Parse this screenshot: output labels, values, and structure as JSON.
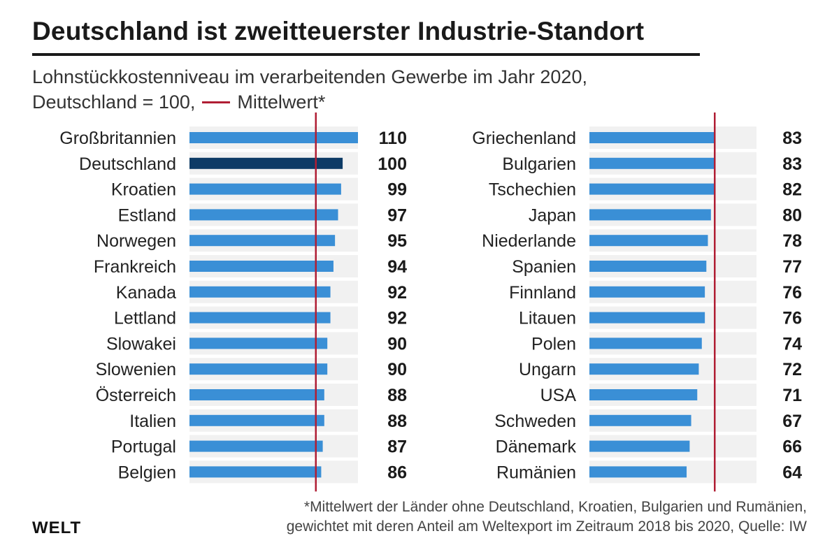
{
  "header": {
    "title": "Deutschland ist zweitteuerster Industrie-Standort",
    "subtitle_line1": "Lohnstückkostenniveau im verarbeitenden Gewerbe im Jahr 2020,",
    "subtitle_line2_prefix": "Deutschland = 100,",
    "subtitle_line2_legend": "Mittelwert*"
  },
  "footer": {
    "footnote_line1": "*Mittelwert der Länder ohne Deutschland, Kroatien, Bulgarien und Rumänien,",
    "footnote_line2": "gewichtet mit deren Anteil am Weltexport im Zeitraum 2018 bis 2020, Quelle: IW",
    "logo": "WELT"
  },
  "colors": {
    "bar": "#3a8fd6",
    "bar_highlight": "#0d3b66",
    "track": "#f1f1f1",
    "mean_line": "#b01e34",
    "text": "#1a1a1a"
  },
  "chart_data": [
    {
      "type": "bar",
      "orientation": "horizontal",
      "categories": [
        "Großbritannien",
        "Deutschland",
        "Kroatien",
        "Estland",
        "Norwegen",
        "Frankreich",
        "Kanada",
        "Lettland",
        "Slowakei",
        "Slowenien",
        "Österreich",
        "Italien",
        "Portugal",
        "Belgien"
      ],
      "values": [
        110,
        100,
        99,
        97,
        95,
        94,
        92,
        92,
        90,
        90,
        88,
        88,
        87,
        86
      ],
      "highlight": "Deutschland",
      "xlim": [
        0,
        110
      ],
      "mean_line": 82.5,
      "grid": false
    },
    {
      "type": "bar",
      "orientation": "horizontal",
      "categories": [
        "Griechenland",
        "Bulgarien",
        "Tschechien",
        "Japan",
        "Niederlande",
        "Spanien",
        "Finnland",
        "Litauen",
        "Polen",
        "Ungarn",
        "USA",
        "Schweden",
        "Dänemark",
        "Rumänien"
      ],
      "values": [
        83,
        83,
        82,
        80,
        78,
        77,
        76,
        76,
        74,
        72,
        71,
        67,
        66,
        64
      ],
      "xlim": [
        0,
        110
      ],
      "mean_line": 82.5,
      "grid": false
    }
  ]
}
